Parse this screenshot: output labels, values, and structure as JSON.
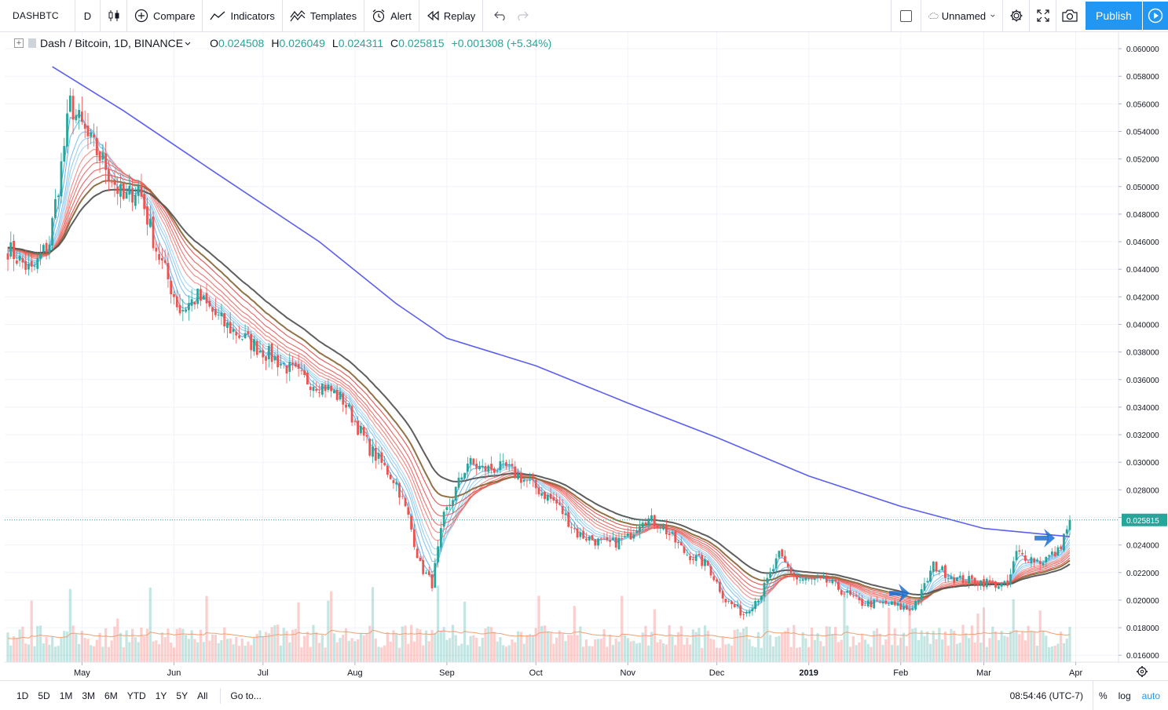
{
  "toolbar": {
    "symbol": "DASHBTC",
    "interval": "D",
    "compare": "Compare",
    "indicators": "Indicators",
    "templates": "Templates",
    "alert": "Alert",
    "replay": "Replay",
    "layout_name": "Unnamed",
    "publish": "Publish"
  },
  "legend": {
    "title": "Dash / Bitcoin, 1D, BINANCE",
    "open_label": "O",
    "open": "0.024508",
    "high_label": "H",
    "high": "0.026049",
    "low_label": "L",
    "low": "0.024311",
    "close_label": "C",
    "close": "0.025815",
    "change": "+0.001308 (+5.34%)"
  },
  "bottom": {
    "ranges": [
      "1D",
      "5D",
      "1M",
      "3M",
      "6M",
      "YTD",
      "1Y",
      "5Y",
      "All"
    ],
    "goto": "Go to...",
    "clock": "08:54:46 (UTC-7)",
    "percent": "%",
    "log": "log",
    "auto": "auto"
  },
  "colors": {
    "up": "#26a69a",
    "down": "#ef5350",
    "ma200": "#5b5ff0",
    "accent": "#2196f3",
    "price_line": "#26a69a"
  },
  "chart_data": {
    "type": "candlestick",
    "ylim": [
      0.0155,
      0.0612
    ],
    "yticks": [
      "0.016000",
      "0.018000",
      "0.020000",
      "0.022000",
      "0.024000",
      "0.026000",
      "0.028000",
      "0.030000",
      "0.032000",
      "0.034000",
      "0.036000",
      "0.038000",
      "0.040000",
      "0.042000",
      "0.044000",
      "0.046000",
      "0.048000",
      "0.050000",
      "0.052000",
      "0.054000",
      "0.056000",
      "0.058000",
      "0.060000"
    ],
    "xticks": [
      {
        "label": "May",
        "date": "2018-05-01"
      },
      {
        "label": "Jun",
        "date": "2018-06-01"
      },
      {
        "label": "Jul",
        "date": "2018-07-01"
      },
      {
        "label": "Aug",
        "date": "2018-08-01"
      },
      {
        "label": "Sep",
        "date": "2018-09-01"
      },
      {
        "label": "Oct",
        "date": "2018-10-01"
      },
      {
        "label": "Nov",
        "date": "2018-11-01"
      },
      {
        "label": "Dec",
        "date": "2018-12-01"
      },
      {
        "label": "2019",
        "date": "2019-01-01"
      },
      {
        "label": "Feb",
        "date": "2019-02-01"
      },
      {
        "label": "Mar",
        "date": "2019-03-01"
      },
      {
        "label": "Apr",
        "date": "2019-04-01"
      }
    ],
    "date_range": [
      "2018-04-06",
      "2019-03-30"
    ],
    "last_price": "0.025815",
    "price_path": [
      [
        "2018-04-06",
        0.0455
      ],
      [
        "2018-04-14",
        0.0438
      ],
      [
        "2018-04-20",
        0.046
      ],
      [
        "2018-04-24",
        0.0515
      ],
      [
        "2018-04-27",
        0.056
      ],
      [
        "2018-05-03",
        0.0535
      ],
      [
        "2018-05-09",
        0.0515
      ],
      [
        "2018-05-15",
        0.049
      ],
      [
        "2018-05-20",
        0.05
      ],
      [
        "2018-05-26",
        0.0455
      ],
      [
        "2018-06-03",
        0.041
      ],
      [
        "2018-06-09",
        0.042
      ],
      [
        "2018-06-18",
        0.04
      ],
      [
        "2018-06-28",
        0.0385
      ],
      [
        "2018-07-05",
        0.0375
      ],
      [
        "2018-07-15",
        0.036
      ],
      [
        "2018-07-22",
        0.0355
      ],
      [
        "2018-07-28",
        0.0345
      ],
      [
        "2018-08-06",
        0.031
      ],
      [
        "2018-08-15",
        0.0285
      ],
      [
        "2018-08-19",
        0.026
      ],
      [
        "2018-08-23",
        0.0225
      ],
      [
        "2018-08-27",
        0.0212
      ],
      [
        "2018-08-31",
        0.026
      ],
      [
        "2018-09-08",
        0.03
      ],
      [
        "2018-09-13",
        0.0295
      ],
      [
        "2018-09-21",
        0.0296
      ],
      [
        "2018-09-30",
        0.0283
      ],
      [
        "2018-10-08",
        0.027
      ],
      [
        "2018-10-15",
        0.0248
      ],
      [
        "2018-10-25",
        0.024
      ],
      [
        "2018-11-01",
        0.0245
      ],
      [
        "2018-11-06",
        0.026
      ],
      [
        "2018-11-12",
        0.0255
      ],
      [
        "2018-11-20",
        0.0235
      ],
      [
        "2018-11-28",
        0.0225
      ],
      [
        "2018-12-04",
        0.02
      ],
      [
        "2018-12-10",
        0.019
      ],
      [
        "2018-12-16",
        0.0205
      ],
      [
        "2018-12-22",
        0.0232
      ],
      [
        "2018-12-28",
        0.0215
      ],
      [
        "2019-01-08",
        0.0213
      ],
      [
        "2019-01-18",
        0.0198
      ],
      [
        "2019-01-28",
        0.0197
      ],
      [
        "2019-02-04",
        0.0193
      ],
      [
        "2019-02-08",
        0.0205
      ],
      [
        "2019-02-12",
        0.0225
      ],
      [
        "2019-02-20",
        0.0215
      ],
      [
        "2019-03-02",
        0.0213
      ],
      [
        "2019-03-09",
        0.021
      ],
      [
        "2019-03-12",
        0.0234
      ],
      [
        "2019-03-20",
        0.0228
      ],
      [
        "2019-03-26",
        0.0235
      ],
      [
        "2019-03-30",
        0.0258
      ]
    ],
    "ma200_path": [
      [
        "2018-04-21",
        0.0587
      ],
      [
        "2018-05-15",
        0.0555
      ],
      [
        "2018-06-15",
        0.051
      ],
      [
        "2018-07-20",
        0.046
      ],
      [
        "2018-08-15",
        0.0415
      ],
      [
        "2018-09-01",
        0.039
      ],
      [
        "2018-10-01",
        0.037
      ],
      [
        "2018-11-01",
        0.0343
      ],
      [
        "2018-12-01",
        0.0318
      ],
      [
        "2019-01-01",
        0.029
      ],
      [
        "2019-02-01",
        0.0268
      ],
      [
        "2019-03-01",
        0.0252
      ],
      [
        "2019-03-30",
        0.0246
      ]
    ],
    "annotations": [
      {
        "type": "arrow",
        "date": "2019-02-04",
        "price": 0.0205,
        "color": "#1e6fd0"
      },
      {
        "type": "arrow",
        "date": "2019-03-25",
        "price": 0.0245,
        "color": "#1e6fd0"
      }
    ],
    "grid": true
  }
}
